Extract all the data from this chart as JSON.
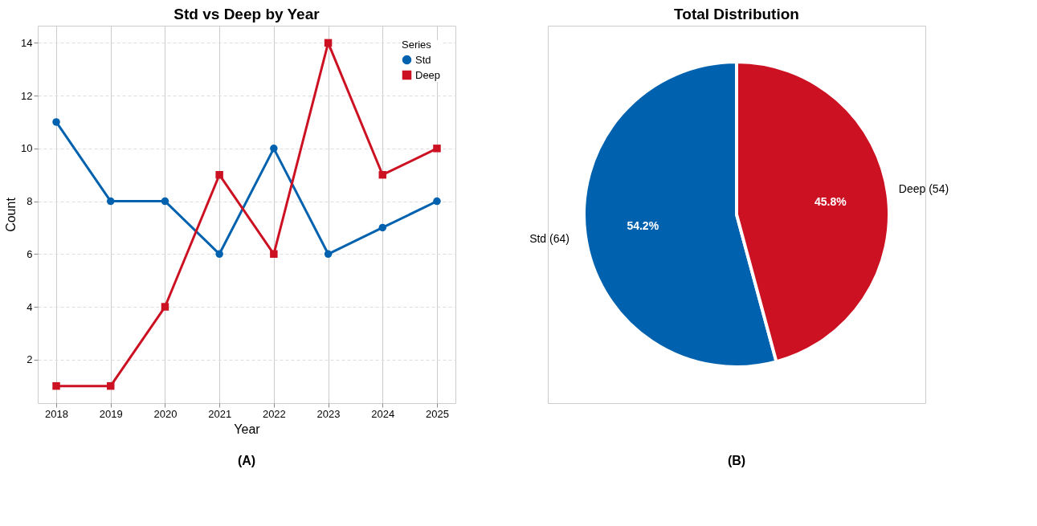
{
  "chart_data": [
    {
      "type": "line",
      "title": "Std vs Deep by Year",
      "xlabel": "Year",
      "ylabel": "Count",
      "legend_title": "Series",
      "categories": [
        "2018",
        "2019",
        "2020",
        "2021",
        "2022",
        "2023",
        "2024",
        "2025"
      ],
      "series": [
        {
          "name": "Std",
          "color": "#0062ae",
          "marker": "circle",
          "values": [
            11,
            8,
            8,
            6,
            10,
            6,
            7,
            8
          ]
        },
        {
          "name": "Deep",
          "color": "#cc1122",
          "marker": "square",
          "values": [
            1,
            1,
            4,
            9,
            6,
            14,
            9,
            10
          ]
        }
      ],
      "ylim": [
        0.35,
        14.65
      ],
      "yticks": [
        2,
        4,
        6,
        8,
        10,
        12,
        14
      ],
      "grid": true,
      "legend": "top right",
      "line_style": "solid",
      "annotations": [
        "(A)"
      ]
    },
    {
      "type": "pie",
      "title": "Total Distribution",
      "categories": [
        "Std (64)",
        "Deep (54)"
      ],
      "values": [
        54.2,
        45.8
      ],
      "colors": [
        "#0062ae",
        "#cc1122"
      ],
      "value_labels": [
        "54.2%",
        "45.8%"
      ],
      "legend": false,
      "annotations": [
        "(B)"
      ]
    }
  ]
}
